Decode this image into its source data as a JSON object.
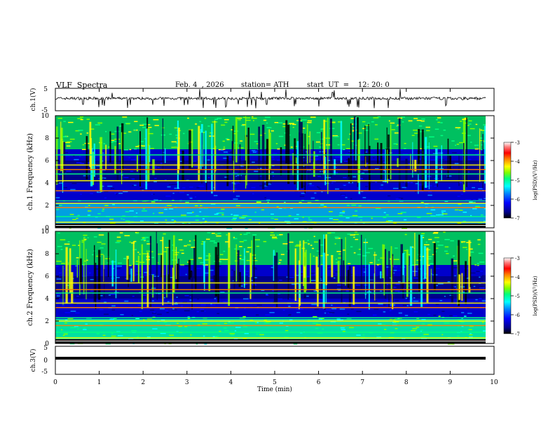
{
  "header": {
    "title": "VLF  Spectra",
    "date": "Feb. 4  , 2026",
    "station": "station= ATH",
    "start": "start  UT  =    12: 20: 0"
  },
  "chart_data": [
    {
      "type": "line",
      "panel": "ch1-waveform",
      "ylabel": "ch.1(V)",
      "ylim": [
        -5,
        5
      ],
      "yticks": [
        "5",
        "-5"
      ],
      "xlim": [
        0,
        10
      ],
      "series": [
        {
          "approx_level": 0.5,
          "style": "noisy black trace with sparse negative spikes"
        }
      ]
    },
    {
      "type": "heatmap",
      "panel": "ch1-spectrogram",
      "ylabel": "ch.1\nFrequency  (kHz)",
      "ylim": [
        0,
        10
      ],
      "yticks": [
        "0",
        "2",
        "4",
        "6",
        "8",
        "10"
      ],
      "xlim": [
        0,
        10
      ],
      "colorbar": {
        "label": "log(PSD)(V²/Hz)",
        "range": [
          -7,
          -3
        ],
        "ticks": [
          "-3",
          "-4",
          "-5",
          "-6",
          "-7"
        ]
      },
      "horizontal_bands_khz": [
        0.5,
        1.0,
        1.8,
        2.2,
        2.4,
        3.3,
        4.2,
        4.8,
        5.2,
        5.6,
        6.5
      ]
    },
    {
      "type": "heatmap",
      "panel": "ch2-spectrogram",
      "ylabel": "ch.2\nFrequency  (kHz)",
      "ylim": [
        0,
        10
      ],
      "yticks": [
        "0",
        "2",
        "4",
        "6",
        "8",
        "10"
      ],
      "xlim": [
        0,
        10
      ],
      "colorbar": {
        "label": "log(PSD)(V²/Hz)",
        "range": [
          -7,
          -3
        ],
        "ticks": [
          "-3",
          "-4",
          "-5",
          "-6",
          "-7"
        ]
      },
      "horizontal_bands_khz": [
        0.5,
        1.0,
        1.6,
        2.0,
        2.3,
        3.2,
        3.6,
        4.5,
        4.8,
        5.4
      ]
    },
    {
      "type": "line",
      "panel": "ch3-waveform",
      "ylabel": "ch.3(V)",
      "ylim": [
        -5,
        5
      ],
      "yticks": [
        "5",
        "0",
        "-5"
      ],
      "xlim": [
        0,
        10
      ],
      "xlabel": "Time  (min)",
      "xticks": [
        "0",
        "1",
        "2",
        "3",
        "4",
        "5",
        "6",
        "7",
        "8",
        "9",
        "10"
      ],
      "series": [
        {
          "approx_level": -0.3,
          "style": "thick flat black line"
        }
      ]
    }
  ],
  "colormap": [
    "#000000",
    "#00008b",
    "#0000ff",
    "#0080ff",
    "#00ffff",
    "#00ff80",
    "#80ff00",
    "#ffff00",
    "#ff8000",
    "#ff0000",
    "#ff8080",
    "#ffffff"
  ]
}
